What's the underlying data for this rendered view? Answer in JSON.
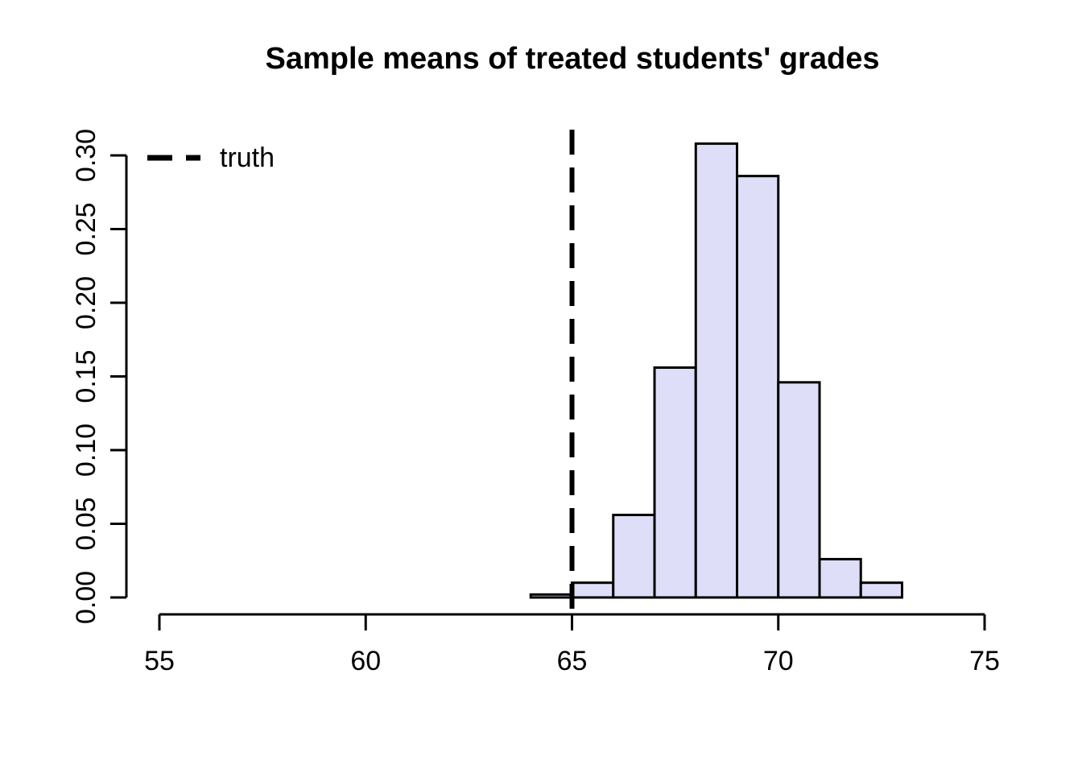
{
  "chart_data": {
    "type": "bar",
    "subtype": "histogram",
    "title": "Sample means of treated students' grades",
    "xlabel": "",
    "ylabel": "",
    "xlim": [
      55,
      75
    ],
    "ylim": [
      0,
      0.3
    ],
    "grid": false,
    "x_ticks": [
      {
        "value": 55,
        "label": "55"
      },
      {
        "value": 60,
        "label": "60"
      },
      {
        "value": 65,
        "label": "65"
      },
      {
        "value": 70,
        "label": "70"
      },
      {
        "value": 75,
        "label": "75"
      }
    ],
    "y_ticks": [
      {
        "value": 0.0,
        "label": "0.00"
      },
      {
        "value": 0.05,
        "label": "0.05"
      },
      {
        "value": 0.1,
        "label": "0.10"
      },
      {
        "value": 0.15,
        "label": "0.15"
      },
      {
        "value": 0.2,
        "label": "0.20"
      },
      {
        "value": 0.25,
        "label": "0.25"
      },
      {
        "value": 0.3,
        "label": "0.30"
      }
    ],
    "bins": [
      {
        "from": 64,
        "to": 65,
        "density": 0.002
      },
      {
        "from": 65,
        "to": 66,
        "density": 0.01
      },
      {
        "from": 66,
        "to": 67,
        "density": 0.056
      },
      {
        "from": 67,
        "to": 68,
        "density": 0.156
      },
      {
        "from": 68,
        "to": 69,
        "density": 0.308
      },
      {
        "from": 69,
        "to": 70,
        "density": 0.286
      },
      {
        "from": 70,
        "to": 71,
        "density": 0.146
      },
      {
        "from": 71,
        "to": 72,
        "density": 0.026
      },
      {
        "from": 72,
        "to": 73,
        "density": 0.01
      }
    ],
    "bar_fill": "#DEDEF8",
    "bar_border": "#000000",
    "reference_line": {
      "x": 65,
      "style": "dashed",
      "color": "#000000",
      "label": "truth"
    },
    "legend": {
      "position": "top-left",
      "entries": [
        {
          "label": "truth",
          "line_style": "dashed",
          "color": "#000000"
        }
      ]
    },
    "axis_color": "#000000",
    "background": "#FFFFFF"
  }
}
